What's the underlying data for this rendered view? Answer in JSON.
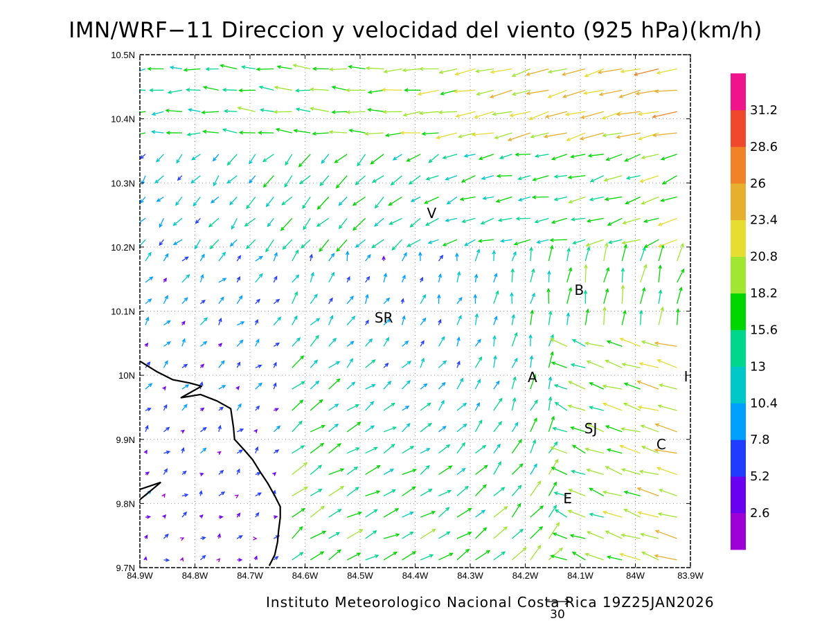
{
  "title": "IMN/WRF−11 Direccion y velocidad del viento (925 hPa)(km/h)",
  "credit": "Instituto Meteorologico Nacional Costa Rica 19Z25JAN2026",
  "map": {
    "lon_range": [
      -84.9,
      -83.9
    ],
    "lat_range": [
      9.7,
      10.5
    ],
    "lon_ticks": [
      {
        "v": -84.9,
        "label": "84.9W"
      },
      {
        "v": -84.8,
        "label": "84.8W"
      },
      {
        "v": -84.7,
        "label": "84.7W"
      },
      {
        "v": -84.6,
        "label": "84.6W"
      },
      {
        "v": -84.5,
        "label": "84.5W"
      },
      {
        "v": -84.4,
        "label": "84.4W"
      },
      {
        "v": -84.3,
        "label": "84.3W"
      },
      {
        "v": -84.2,
        "label": "84.2W"
      },
      {
        "v": -84.1,
        "label": "84.1W"
      },
      {
        "v": -84.0,
        "label": "84W"
      },
      {
        "v": -83.9,
        "label": "83.9W"
      }
    ],
    "lat_ticks": [
      {
        "v": 9.7,
        "label": "9.7N"
      },
      {
        "v": 9.8,
        "label": "9.8N"
      },
      {
        "v": 9.9,
        "label": "9.9N"
      },
      {
        "v": 10.0,
        "label": "10N"
      },
      {
        "v": 10.1,
        "label": "10.1N"
      },
      {
        "v": 10.2,
        "label": "10.2N"
      },
      {
        "v": 10.3,
        "label": "10.3N"
      },
      {
        "v": 10.4,
        "label": "10.4N"
      },
      {
        "v": 10.5,
        "label": "10.5N"
      }
    ],
    "grid_lines": "dotted",
    "cities": [
      {
        "label": "V",
        "lon": -84.37,
        "lat": 10.253
      },
      {
        "label": "SR",
        "lon": -84.457,
        "lat": 10.09
      },
      {
        "label": "B",
        "lon": -84.102,
        "lat": 10.133
      },
      {
        "label": "A",
        "lon": -84.187,
        "lat": 9.997
      },
      {
        "label": "SJ",
        "lon": -84.081,
        "lat": 9.917
      },
      {
        "label": "E",
        "lon": -84.123,
        "lat": 9.808
      },
      {
        "label": "C",
        "lon": -83.953,
        "lat": 9.892
      },
      {
        "label": "I",
        "lon": -83.908,
        "lat": 9.998
      }
    ],
    "coastline": [
      [
        -84.9,
        10.022
      ],
      [
        -84.87,
        10.006
      ],
      [
        -84.84,
        9.993
      ],
      [
        -84.81,
        9.988
      ],
      [
        -84.788,
        9.983
      ],
      [
        -84.825,
        9.965
      ],
      [
        -84.79,
        9.97
      ],
      [
        -84.76,
        9.96
      ],
      [
        -84.735,
        9.948
      ],
      [
        -84.73,
        9.918
      ],
      [
        -84.728,
        9.9
      ],
      [
        -84.71,
        9.883
      ],
      [
        -84.695,
        9.868
      ],
      [
        -84.682,
        9.85
      ],
      [
        -84.668,
        9.832
      ],
      [
        -84.655,
        9.812
      ],
      [
        -84.645,
        9.795
      ],
      [
        -84.645,
        9.778
      ],
      [
        -84.648,
        9.758
      ],
      [
        -84.65,
        9.74
      ],
      [
        -84.655,
        9.72
      ],
      [
        -84.665,
        9.703
      ]
    ],
    "coastline_point": [
      [
        -84.9,
        9.822
      ],
      [
        -84.862,
        9.833
      ],
      [
        -84.9,
        9.806
      ]
    ]
  },
  "colorbar": {
    "colors": [
      "#9c00d6",
      "#6a00f0",
      "#1f3cff",
      "#00a0ff",
      "#00c8c8",
      "#00d78c",
      "#00d600",
      "#a0e632",
      "#e6dc32",
      "#e6af2d",
      "#f08228",
      "#f0482d",
      "#f0148c"
    ],
    "labels": [
      "2.6",
      "5.2",
      "7.8",
      "10.4",
      "13",
      "15.6",
      "18.2",
      "20.8",
      "23.4",
      "26",
      "28.6",
      "31.2"
    ]
  },
  "reference_vector": {
    "value": 30,
    "label": "30",
    "units": "km/h"
  }
}
